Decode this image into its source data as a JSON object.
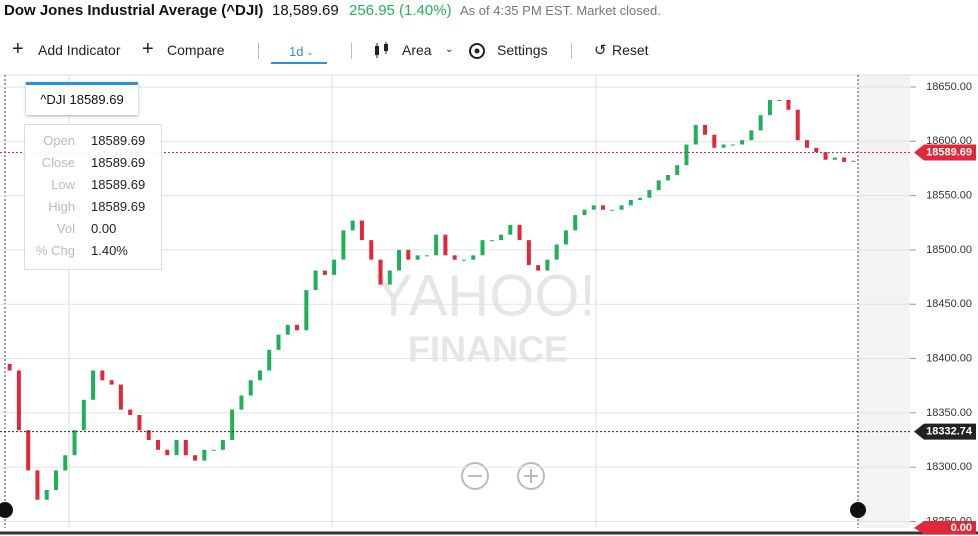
{
  "header": {
    "title": "Dow Jones Industrial Average (^DJI)",
    "price": "18,589.69",
    "change": "256.95 (1.40%)",
    "status": "As of 4:35 PM EST. Market closed."
  },
  "toolbar": {
    "add_indicator": "Add Indicator",
    "compare": "Compare",
    "range": "1d",
    "chart_type": "Area",
    "settings": "Settings",
    "reset": "Reset"
  },
  "tooltip": {
    "label": "^DJI 18589.69",
    "rows": [
      [
        "Open",
        "18589.69"
      ],
      [
        "Close",
        "18589.69"
      ],
      [
        "Low",
        "18589.69"
      ],
      [
        "High",
        "18589.69"
      ],
      [
        "Vol",
        "0.00"
      ],
      [
        "% Chg",
        "1.40%"
      ]
    ]
  },
  "watermark": [
    "YAHOO!",
    "FINANCE"
  ],
  "chart_data": {
    "type": "candlestick",
    "up_color": "#1fb15a",
    "down_color": "#e0283a",
    "ylim": [
      18244,
      18661
    ],
    "yticks": [
      {
        "value": 18250,
        "label": "18250.00"
      },
      {
        "value": 18300,
        "label": "18300.00"
      },
      {
        "value": 18350,
        "label": "18350.00"
      },
      {
        "value": 18400,
        "label": "18400.00"
      },
      {
        "value": 18450,
        "label": "18450.00"
      },
      {
        "value": 18500,
        "label": "18500.00"
      },
      {
        "value": 18550,
        "label": "18550.00"
      },
      {
        "value": 18600,
        "label": "18600.00"
      },
      {
        "value": 18650,
        "label": "18650.00"
      }
    ],
    "grid": true,
    "open": [
      18395,
      18389,
      18334,
      18297,
      18270,
      18279,
      18297,
      18311,
      18334,
      18362,
      18389,
      18380,
      18376,
      18353,
      18348,
      18334,
      18325,
      18316,
      18311,
      18325,
      18311,
      18306,
      18316,
      18316,
      18325,
      18353,
      18366,
      18380,
      18389,
      18408,
      18422,
      18431,
      18426,
      18463,
      18481,
      18477,
      18491,
      18518,
      18527,
      18509,
      18491,
      18468,
      18481,
      18500,
      18491,
      18495,
      18495,
      18514,
      18495,
      18491,
      18491,
      18495,
      18509,
      18509,
      18514,
      18523,
      18509,
      18486,
      18481,
      18491,
      18505,
      18518,
      18532,
      18537,
      18541,
      18537,
      18537,
      18541,
      18546,
      18548,
      18555,
      18564,
      18569,
      18578,
      18597,
      18615,
      18606,
      18594,
      18597,
      18597,
      18601,
      18610,
      18624,
      18638,
      18638,
      18629,
      18601,
      18594,
      18590,
      18583,
      18585,
      18581
    ],
    "close": [
      18389,
      18334,
      18297,
      18270,
      18279,
      18297,
      18311,
      18334,
      18362,
      18389,
      18380,
      18376,
      18353,
      18348,
      18334,
      18325,
      18316,
      18311,
      18325,
      18311,
      18306,
      18316,
      18316,
      18325,
      18353,
      18366,
      18380,
      18389,
      18408,
      18422,
      18431,
      18426,
      18463,
      18481,
      18477,
      18491,
      18518,
      18527,
      18509,
      18491,
      18468,
      18481,
      18500,
      18491,
      18495,
      18495,
      18514,
      18495,
      18491,
      18491,
      18495,
      18509,
      18509,
      18514,
      18523,
      18509,
      18486,
      18481,
      18491,
      18505,
      18518,
      18532,
      18537,
      18541,
      18537,
      18537,
      18541,
      18546,
      18548,
      18555,
      18564,
      18569,
      18578,
      18597,
      18615,
      18606,
      18594,
      18597,
      18597,
      18601,
      18610,
      18624,
      18638,
      18638,
      18629,
      18601,
      18594,
      18590,
      18583,
      18585,
      18581,
      18582
    ],
    "price_marker": {
      "value": 18589.69,
      "color": "#e0283a"
    },
    "prev_close_marker": {
      "value": 18332.74,
      "color": "#222222"
    },
    "volume_marker": {
      "value": 0,
      "label": "0.00",
      "color": "#e0283a"
    }
  }
}
